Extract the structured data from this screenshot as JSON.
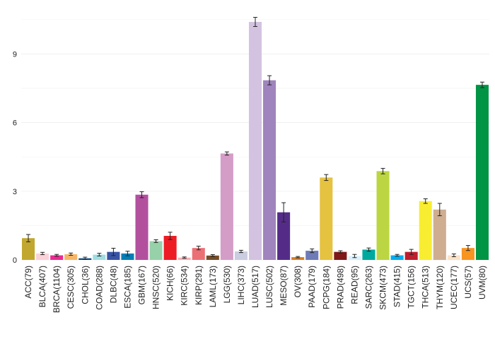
{
  "chart_data": {
    "type": "bar",
    "title": "",
    "xlabel": "",
    "ylabel": "",
    "ylim": [
      0,
      11
    ],
    "yticks": [
      0,
      3,
      6,
      9
    ],
    "grid": "horizontal",
    "legend": "none",
    "error_bars": true,
    "categories": [
      "ACC(79)",
      "BLCA(407)",
      "BRCA(1104)",
      "CESC(305)",
      "CHOL(36)",
      "COAD(288)",
      "DLBC(48)",
      "ESCA(185)",
      "GBM(167)",
      "HNSC(520)",
      "KICH(66)",
      "KIRC(534)",
      "KIRP(291)",
      "LAML(173)",
      "LGG(530)",
      "LIHC(373)",
      "LUAD(517)",
      "LUSC(502)",
      "MESO(87)",
      "OV(308)",
      "PAAD(179)",
      "PCPG(184)",
      "PRAD(498)",
      "READ(95)",
      "SARC(263)",
      "SKCM(473)",
      "STAD(415)",
      "TGCT(156)",
      "THCA(513)",
      "THYM(120)",
      "UCEC(177)",
      "UCS(57)",
      "UVM(80)"
    ],
    "values": [
      0.95,
      0.28,
      0.2,
      0.25,
      0.07,
      0.23,
      0.35,
      0.28,
      2.85,
      0.82,
      1.05,
      0.1,
      0.52,
      0.19,
      4.65,
      0.37,
      10.4,
      7.85,
      2.08,
      0.12,
      0.4,
      3.6,
      0.35,
      0.17,
      0.45,
      3.88,
      0.2,
      0.35,
      2.57,
      2.2,
      0.2,
      0.52,
      7.65
    ],
    "errors": [
      0.16,
      0.05,
      0.04,
      0.05,
      0.05,
      0.06,
      0.16,
      0.1,
      0.13,
      0.06,
      0.16,
      0.03,
      0.08,
      0.04,
      0.07,
      0.05,
      0.2,
      0.2,
      0.42,
      0.03,
      0.08,
      0.13,
      0.05,
      0.07,
      0.07,
      0.12,
      0.04,
      0.11,
      0.1,
      0.27,
      0.06,
      0.11,
      0.12
    ],
    "colors": [
      "#c1a72f",
      "#fad2d9",
      "#ed2891",
      "#f6b667",
      "#104a7f",
      "#9edde2",
      "#3953a4",
      "#007eb5",
      "#b2509e",
      "#97d1a9",
      "#ed1c24",
      "#f8afb3",
      "#ea7075",
      "#754c29",
      "#d49dc7",
      "#cacce1",
      "#d3c3e0",
      "#a084bd",
      "#542c88",
      "#d97d25",
      "#6e7bb7",
      "#e6c241",
      "#7e1918",
      "#daf1fc",
      "#00a99d",
      "#bbd642",
      "#00aeef",
      "#be1e2d",
      "#f9ed32",
      "#cead91",
      "#fbe3c7",
      "#f89420",
      "#009444"
    ]
  }
}
